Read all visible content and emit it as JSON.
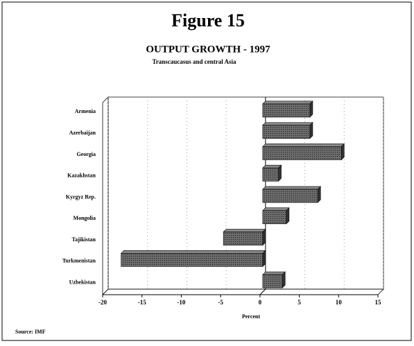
{
  "chart_data": {
    "type": "barh",
    "title": "Figure 15",
    "subtitle": "OUTPUT GROWTH - 1997",
    "caption": "Transcaucasus and central Asia",
    "categories": [
      "Armenia",
      "Azerbaijan",
      "Georgia",
      "Kazakhstan",
      "Kyrgyz Rep.",
      "Mongolia",
      "Tajikistan",
      "Turkmenistan",
      "Uzbekistan"
    ],
    "values": [
      6,
      6,
      10,
      2,
      7,
      3,
      -5,
      -18,
      2.5
    ],
    "color": "#5a5a5a",
    "xlim": [
      -20,
      15
    ],
    "xticks": [
      -20,
      -15,
      -10,
      -5,
      0,
      5,
      10,
      15
    ],
    "xlabel": "Percent",
    "grid": true,
    "source": "Source: IMF"
  }
}
